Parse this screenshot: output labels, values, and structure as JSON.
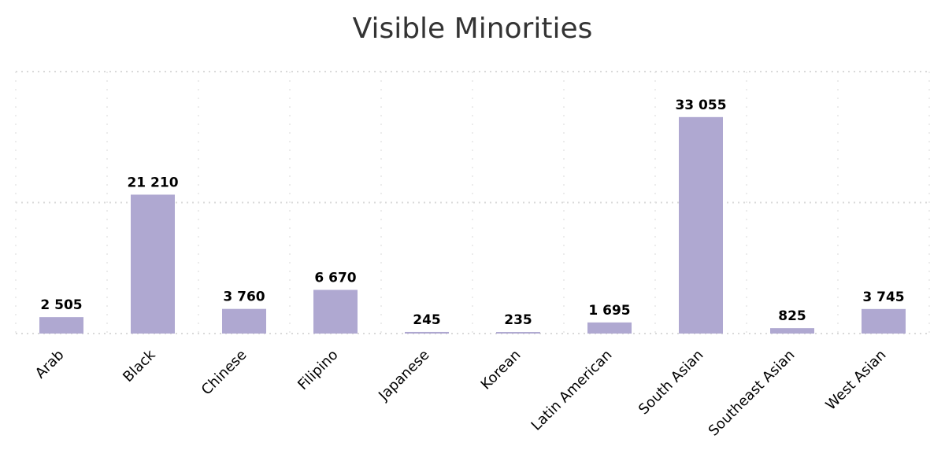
{
  "chart_data": {
    "type": "bar",
    "title": "Visible Minorities",
    "xlabel": "",
    "ylabel": "",
    "categories": [
      "Arab",
      "Black",
      "Chinese",
      "Filipino",
      "Japanese",
      "Korean",
      "Latin American",
      "South Asian",
      "Southeast Asian",
      "West Asian"
    ],
    "values": [
      2505,
      21210,
      3760,
      6670,
      245,
      235,
      1695,
      33055,
      825,
      3745
    ],
    "value_labels": [
      "2 505",
      "21 210",
      "3 760",
      "6 670",
      "245",
      "235",
      "1 695",
      "33 055",
      "825",
      "3 745"
    ],
    "ylim": [
      0,
      40000
    ],
    "y_gridlines": [
      0,
      20000,
      40000
    ],
    "grid": true,
    "legend": "none",
    "bar_color": "#afa8d1"
  }
}
